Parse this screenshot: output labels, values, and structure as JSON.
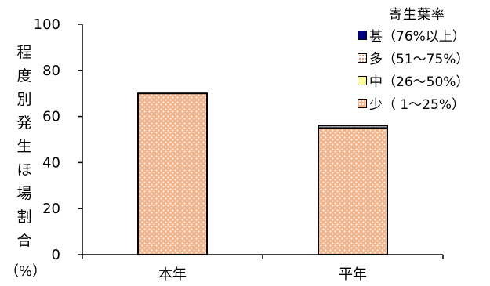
{
  "chart_data": {
    "type": "bar",
    "stacked": true,
    "categories": [
      "本年",
      "平年"
    ],
    "ylabel_chars": [
      "程",
      "度",
      "別",
      "発",
      "生",
      "ほ",
      "場",
      "割",
      "合"
    ],
    "ylabel_unit": "（%）",
    "ylim": [
      0,
      100
    ],
    "yticks": [
      0,
      20,
      40,
      60,
      80,
      100
    ],
    "legend_title": "寄生葉率",
    "legend_position": "top-right",
    "series": [
      {
        "name": "少（ 1～25%）",
        "values": [
          70,
          55
        ],
        "color": "#f2b48c",
        "pattern": "dotted"
      },
      {
        "name": "中（26～50%）",
        "values": [
          0,
          0
        ],
        "color": "#ffff99"
      },
      {
        "name": "多（51～75%）",
        "values": [
          0,
          1
        ],
        "color": "#ffffff",
        "pattern": "dotted-orange"
      },
      {
        "name": "甚（76%以上）",
        "values": [
          0,
          0
        ],
        "color": "#000080"
      }
    ],
    "legend_order": [
      "甚（76%以上）",
      "多（51～75%）",
      "中（26～50%）",
      "少（ 1～25%）"
    ]
  }
}
